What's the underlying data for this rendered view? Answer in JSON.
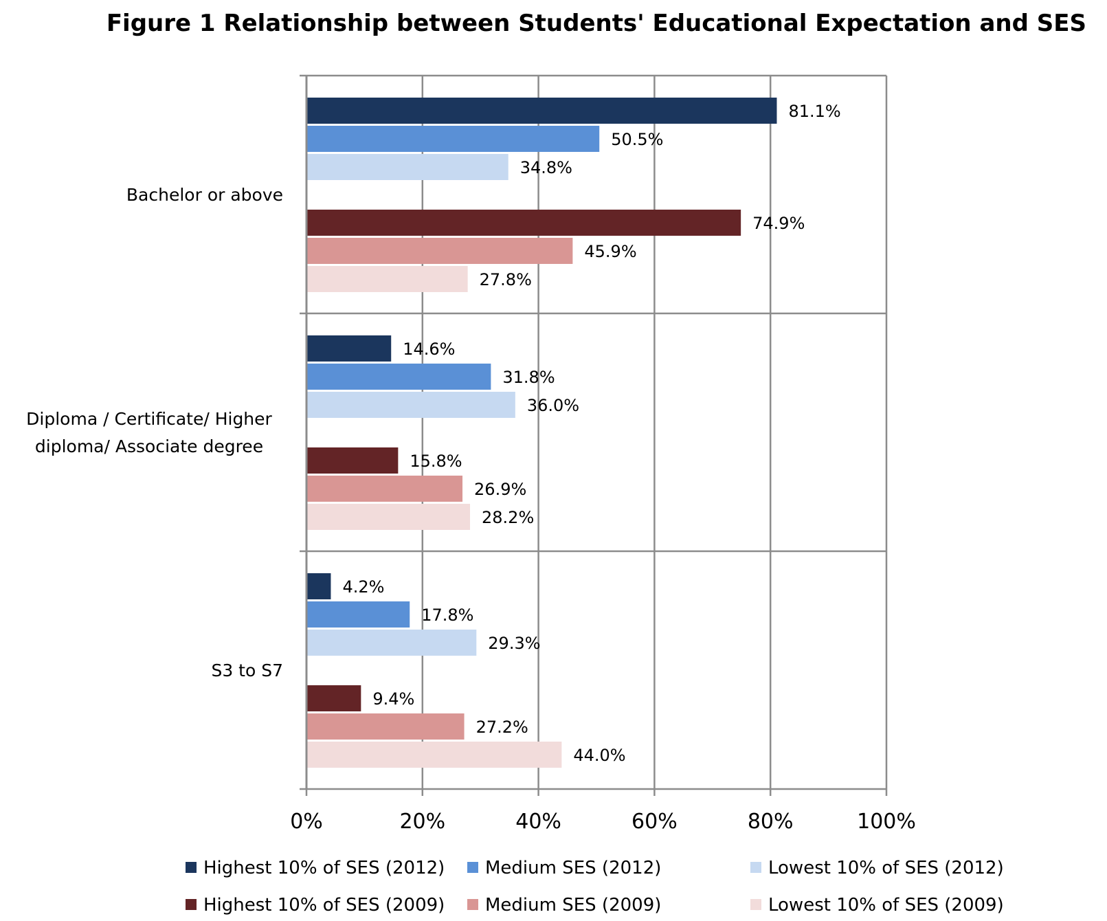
{
  "chart_data": {
    "type": "bar",
    "orientation": "horizontal",
    "title": "Figure 1 Relationship between Students' Educational Expectation and SES",
    "categories": [
      "Bachelor or above",
      "Diploma / Certificate/ Higher diploma/ Associate degree",
      "S3 to S7"
    ],
    "category_lines": [
      [
        "Bachelor or above"
      ],
      [
        "Diploma / Certificate/ Higher",
        "diploma/ Associate degree"
      ],
      [
        "S3 to S7"
      ]
    ],
    "xlim": [
      0,
      100
    ],
    "xticks": [
      "0%",
      "20%",
      "40%",
      "60%",
      "80%",
      "100%"
    ],
    "grid": true,
    "legend_position": "bottom",
    "series": [
      {
        "name": "Highest 10% of SES (2012)",
        "color": "#1b365d",
        "values": [
          81.1,
          14.6,
          4.2
        ],
        "labels": [
          "81.1%",
          "14.6%",
          "4.2%"
        ]
      },
      {
        "name": "Medium SES (2012)",
        "color": "#5a90d6",
        "values": [
          50.5,
          31.8,
          17.8
        ],
        "labels": [
          "50.5%",
          "31.8%",
          "17.8%"
        ]
      },
      {
        "name": "Lowest 10% of SES (2012)",
        "color": "#c6d9f1",
        "values": [
          34.8,
          36.0,
          29.3
        ],
        "labels": [
          "34.8%",
          "36.0%",
          "29.3%"
        ]
      },
      {
        "name": "Highest 10% of SES (2009)",
        "color": "#632426",
        "values": [
          74.9,
          15.8,
          9.4
        ],
        "labels": [
          "74.9%",
          "15.8%",
          "9.4%"
        ]
      },
      {
        "name": "Medium SES (2009)",
        "color": "#d99694",
        "values": [
          45.9,
          26.9,
          27.2
        ],
        "labels": [
          "45.9%",
          "26.9%",
          "27.2%"
        ]
      },
      {
        "name": "Lowest 10% of SES (2009)",
        "color": "#f2dcdb",
        "values": [
          27.8,
          28.2,
          44.0
        ],
        "labels": [
          "27.8%",
          "28.2%",
          "44.0%"
        ]
      }
    ]
  }
}
